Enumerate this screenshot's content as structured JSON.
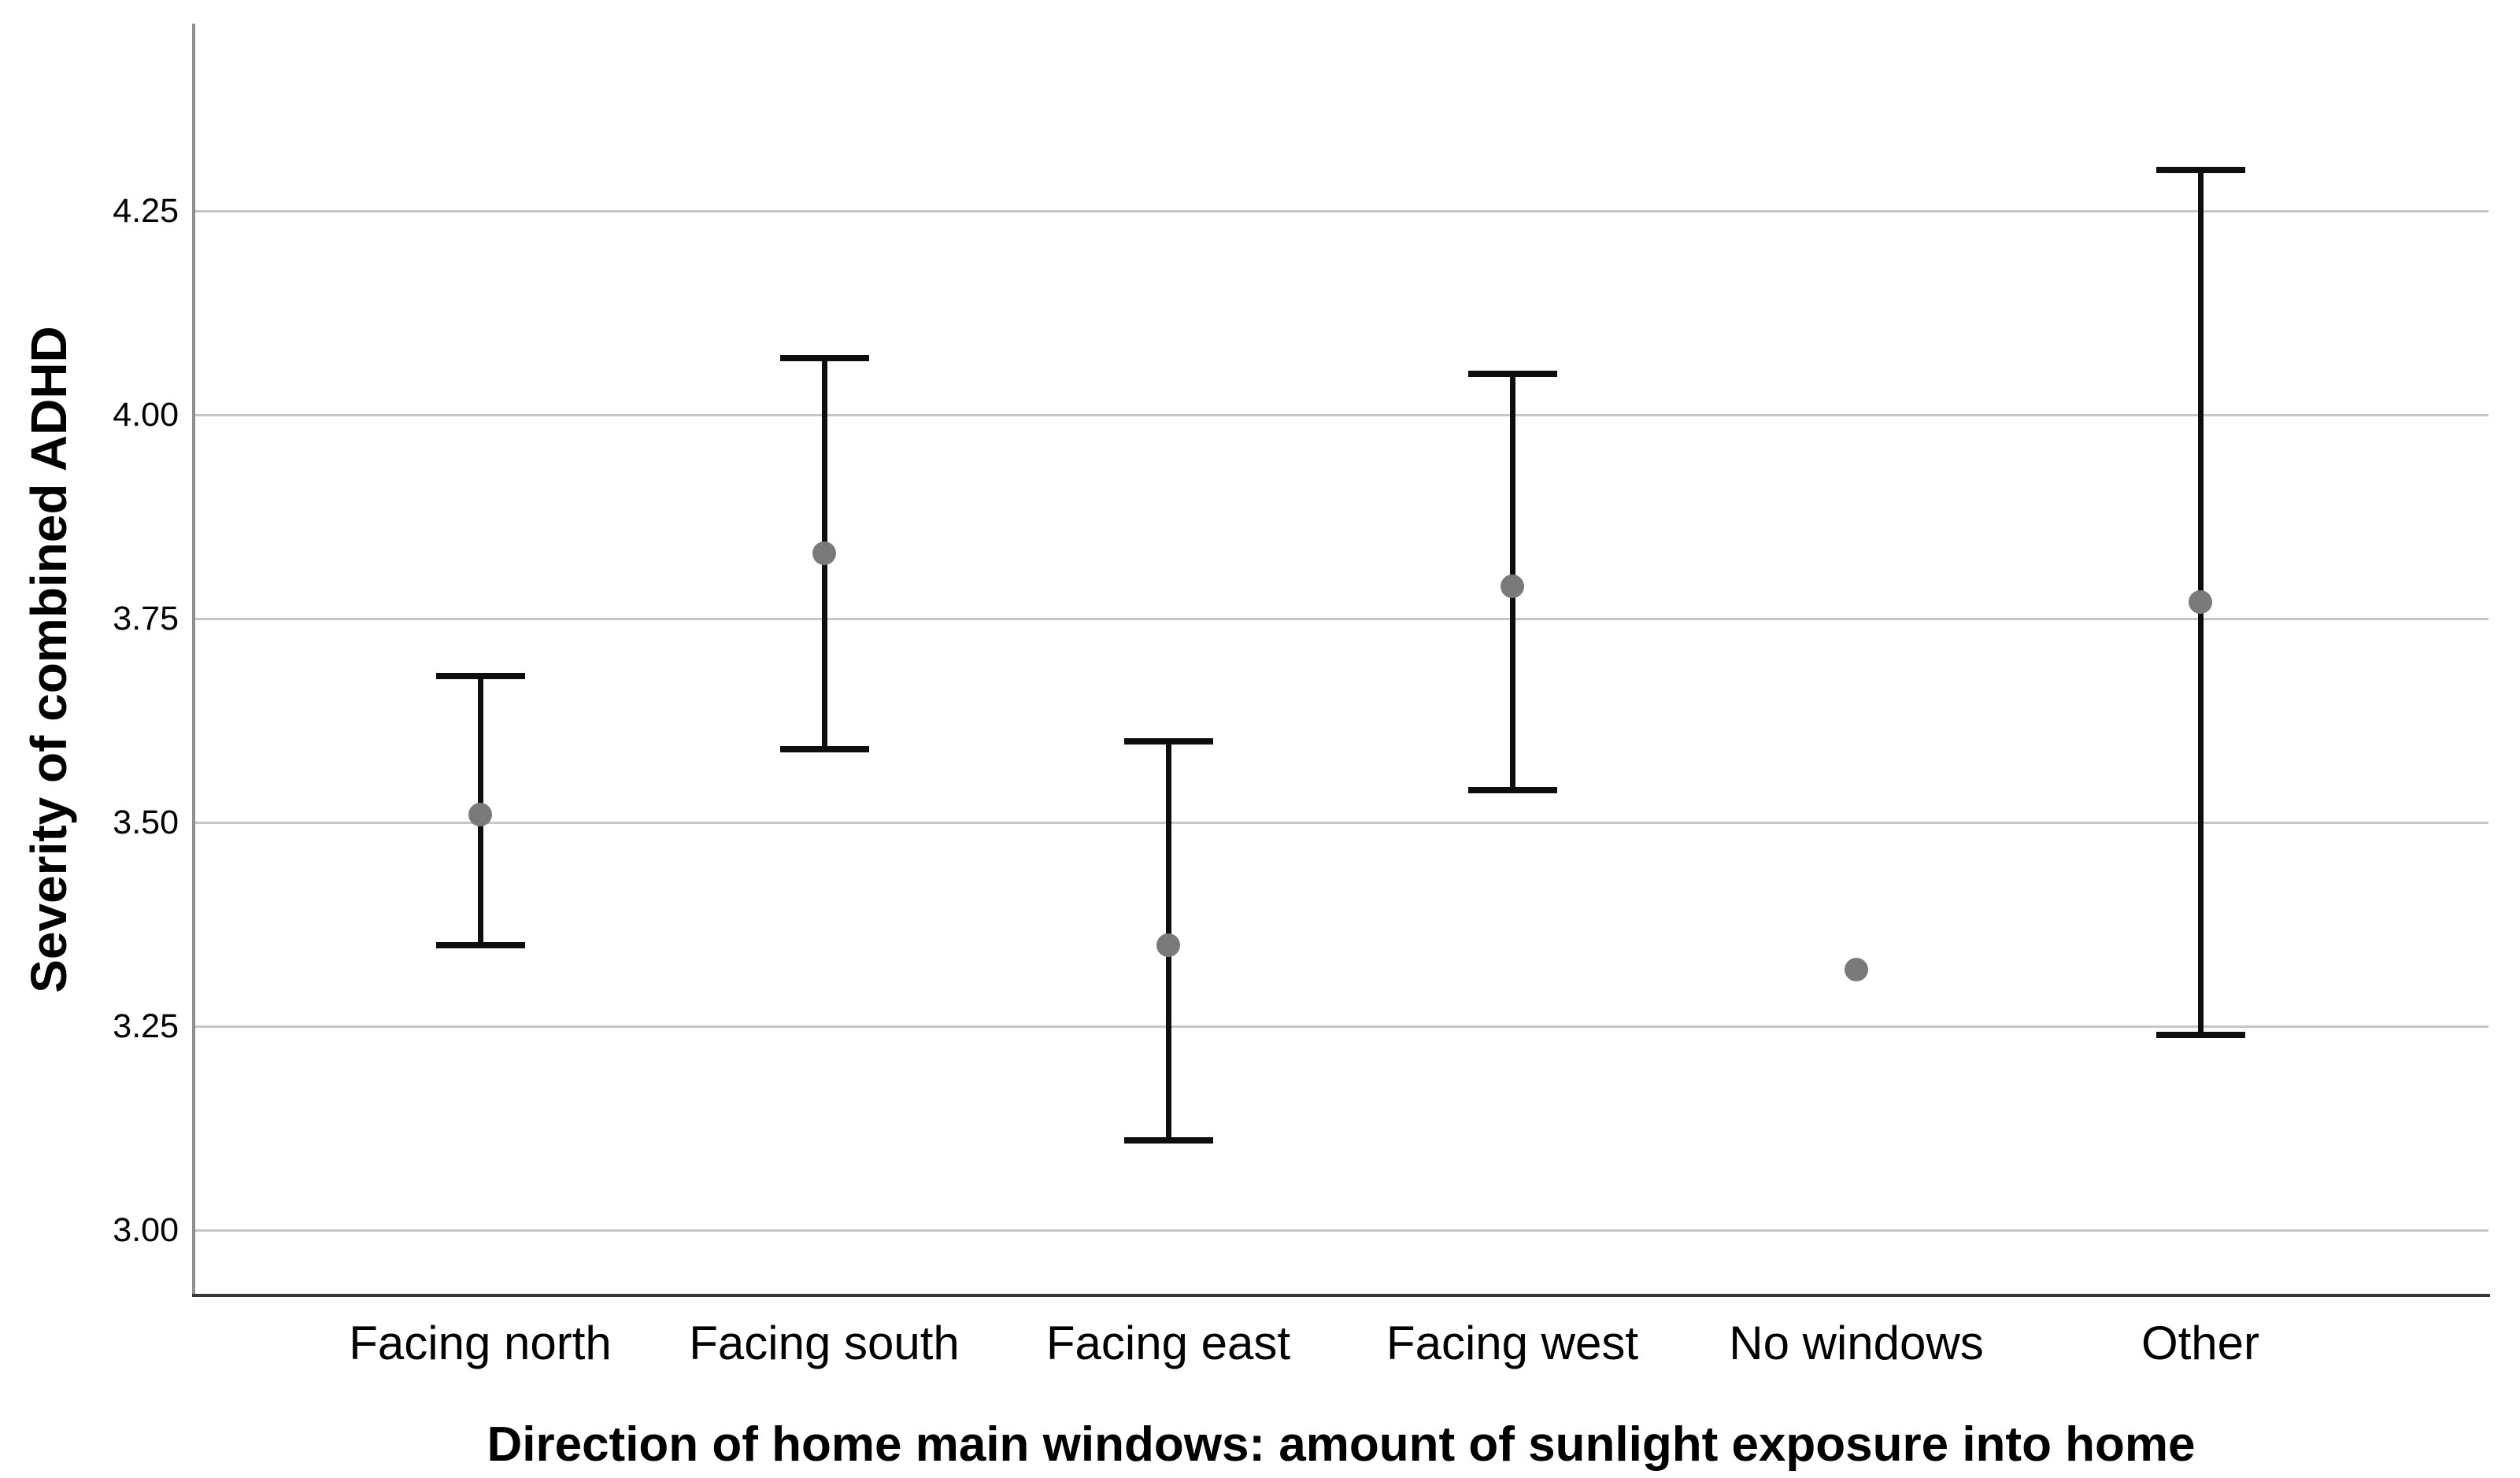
{
  "chart_data": {
    "type": "scatter",
    "subtype": "mean-with-error-bars",
    "title": "",
    "xlabel": "Direction of home main windows: amount of sunlight exposure into home",
    "ylabel": "Severity of combined ADHD",
    "categories": [
      "Facing north",
      "Facing south",
      "Facing east",
      "Facing west",
      "No windows",
      "Other"
    ],
    "series": [
      {
        "name": "Mean severity of combined ADHD",
        "values": [
          3.51,
          3.83,
          3.35,
          3.79,
          3.32,
          3.77
        ],
        "error_low": [
          3.35,
          3.59,
          3.11,
          3.54,
          null,
          3.24
        ],
        "error_high": [
          3.68,
          4.07,
          3.6,
          4.05,
          null,
          4.3
        ]
      }
    ],
    "ylim": [
      2.92,
      4.48
    ],
    "yticks": [
      3.0,
      3.25,
      3.5,
      3.75,
      4.0,
      4.25
    ],
    "ytick_labels": [
      "3.00",
      "3.25",
      "3.50",
      "3.75",
      "4.00",
      "4.25"
    ],
    "grid": "horizontal",
    "legend": "none",
    "colors": {
      "point": "#7a7a7a",
      "error_bar": "#0e0e0e",
      "gridline": "#c6c6c6",
      "y_axis_line": "#8f8f8f",
      "x_axis_line": "#383838",
      "text": "#000000",
      "background": "#ffffff"
    }
  }
}
